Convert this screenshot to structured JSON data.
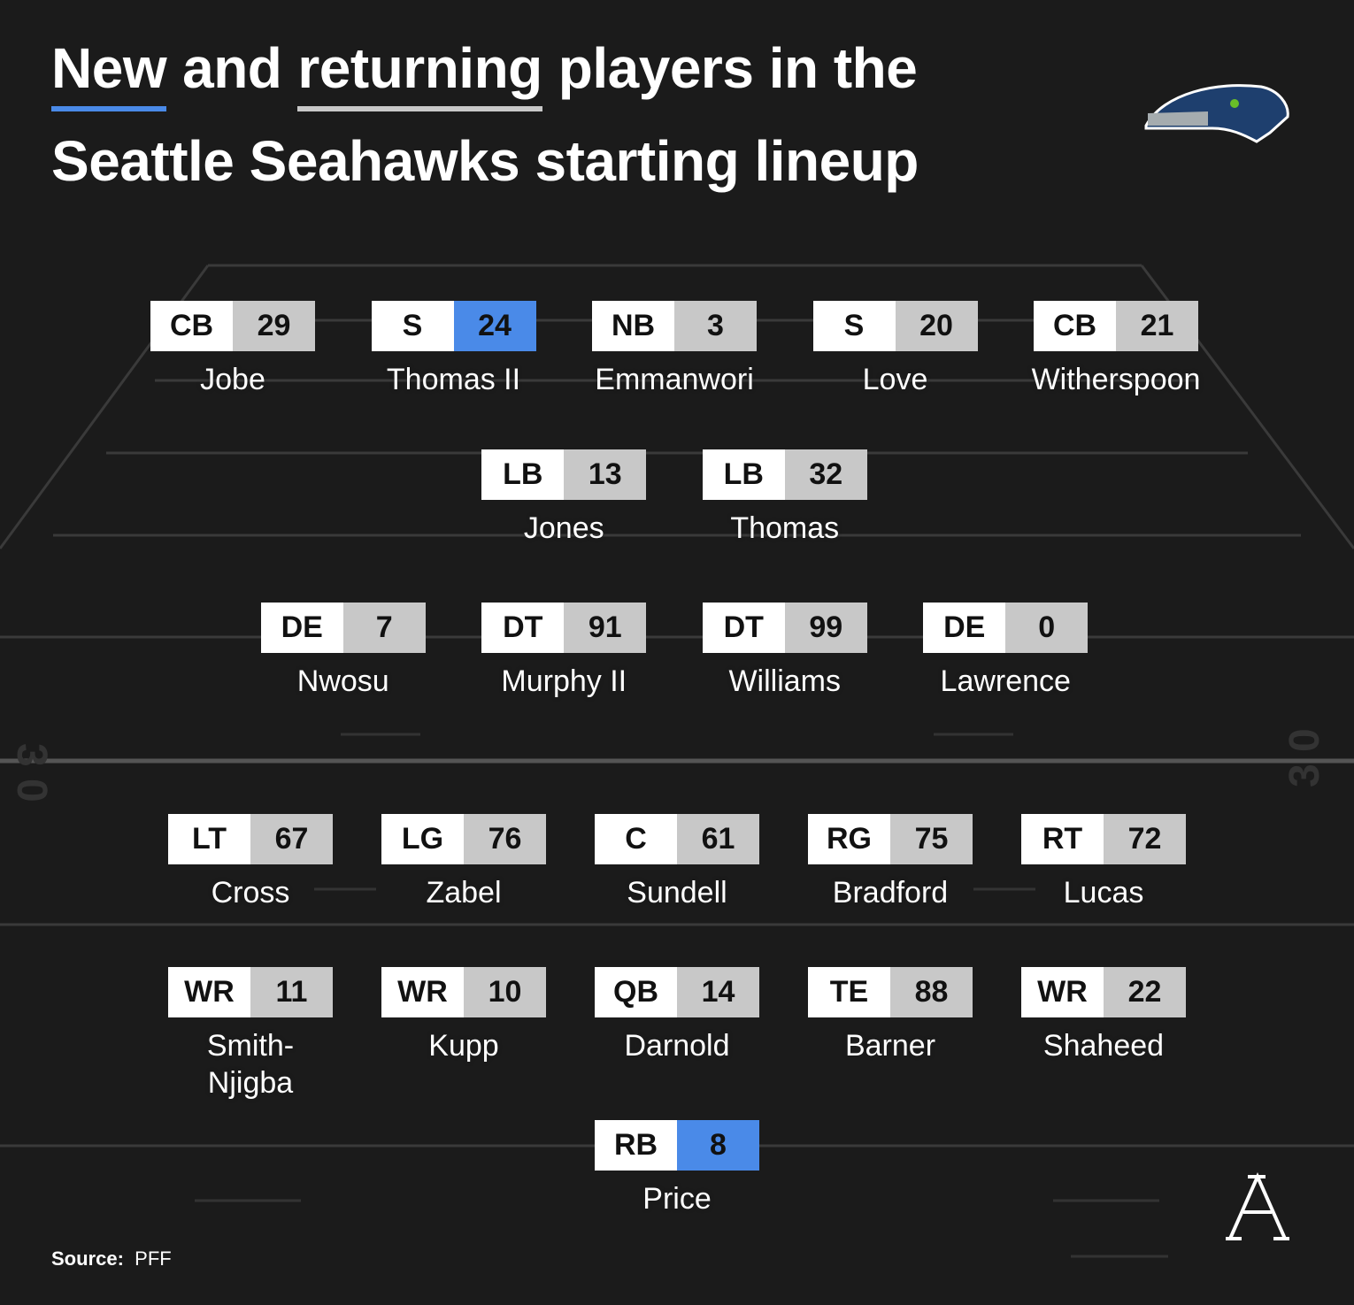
{
  "header": {
    "title_line1": [
      "New",
      "and",
      "returning",
      "players in the"
    ],
    "title_line2": "Seattle Seahawks starting lineup",
    "legend": {
      "new": "#4a8ae8",
      "returning": "#c8c8c8"
    }
  },
  "lineup": [
    [
      {
        "pos": "CB",
        "num": "29",
        "name": "Jobe",
        "color": "#c8c8c8"
      },
      {
        "pos": "S",
        "num": "24",
        "name": "Thomas II",
        "color": "#4a8ae8"
      },
      {
        "pos": "NB",
        "num": "3",
        "name": "Emmanwori",
        "color": "#c8c8c8"
      },
      {
        "pos": "S",
        "num": "20",
        "name": "Love",
        "color": "#c8c8c8"
      },
      {
        "pos": "CB",
        "num": "21",
        "name": "Witherspoon",
        "color": "#c8c8c8"
      }
    ],
    [
      {
        "pos": "LB",
        "num": "13",
        "name": "Jones",
        "color": "#c8c8c8"
      },
      {
        "pos": "LB",
        "num": "32",
        "name": "Thomas",
        "color": "#c8c8c8"
      }
    ],
    [
      {
        "pos": "DE",
        "num": "7",
        "name": "Nwosu",
        "color": "#c8c8c8"
      },
      {
        "pos": "DT",
        "num": "91",
        "name": "Murphy II",
        "color": "#c8c8c8"
      },
      {
        "pos": "DT",
        "num": "99",
        "name": "Williams",
        "color": "#c8c8c8"
      },
      {
        "pos": "DE",
        "num": "0",
        "name": "Lawrence",
        "color": "#c8c8c8"
      }
    ],
    [
      {
        "pos": "LT",
        "num": "67",
        "name": "Cross",
        "color": "#c8c8c8"
      },
      {
        "pos": "LG",
        "num": "76",
        "name": "Zabel",
        "color": "#c8c8c8"
      },
      {
        "pos": "C",
        "num": "61",
        "name": "Sundell",
        "color": "#c8c8c8"
      },
      {
        "pos": "RG",
        "num": "75",
        "name": "Bradford",
        "color": "#c8c8c8"
      },
      {
        "pos": "RT",
        "num": "72",
        "name": "Lucas",
        "color": "#c8c8c8"
      }
    ],
    [
      {
        "pos": "WR",
        "num": "11",
        "name": "Smith-Njigba",
        "color": "#c8c8c8"
      },
      {
        "pos": "WR",
        "num": "10",
        "name": "Kupp",
        "color": "#c8c8c8"
      },
      {
        "pos": "QB",
        "num": "14",
        "name": "Darnold",
        "color": "#c8c8c8"
      },
      {
        "pos": "TE",
        "num": "88",
        "name": "Barner",
        "color": "#c8c8c8"
      },
      {
        "pos": "WR",
        "num": "22",
        "name": "Shaheed",
        "color": "#c8c8c8"
      }
    ],
    [
      {
        "pos": "RB",
        "num": "8",
        "name": "Price",
        "color": "#4a8ae8"
      }
    ]
  ],
  "footer": {
    "source_label": "Source:",
    "source": "PFF"
  }
}
